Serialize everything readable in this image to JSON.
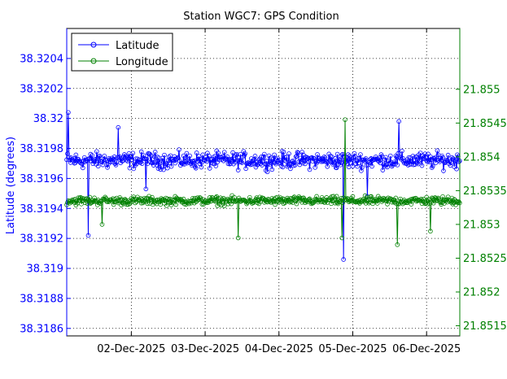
{
  "chart_data": {
    "type": "line",
    "title": "Station WGC7: GPS Condition",
    "xlabel": "",
    "ylabel": "Latitude (degrees)",
    "y2label": "",
    "xlim": [
      1.125,
      6.45
    ],
    "x_tick_values": [
      2,
      3,
      4,
      5,
      6
    ],
    "x_tick_labels": [
      "02-Dec-2025",
      "03-Dec-2025",
      "04-Dec-2025",
      "05-Dec-2025",
      "06-Dec-2025"
    ],
    "ylim": [
      38.31855,
      38.3206
    ],
    "y_ticks": [
      38.3186,
      38.3188,
      38.319,
      38.3192,
      38.3194,
      38.3196,
      38.3198,
      38.32,
      38.3202,
      38.3204
    ],
    "y_tick_labels": [
      "38.3186",
      "38.3188",
      "38.319",
      "38.3192",
      "38.3194",
      "38.3196",
      "38.3198",
      "38.32",
      "38.3202",
      "38.3204"
    ],
    "y2lim": [
      21.85135,
      21.8559
    ],
    "y2_ticks": [
      21.8515,
      21.852,
      21.8525,
      21.853,
      21.8535,
      21.854,
      21.8545,
      21.855
    ],
    "y2_tick_labels": [
      "21.8515",
      "21.852",
      "21.8525",
      "21.853",
      "21.8535",
      "21.854",
      "21.8545",
      "21.855"
    ],
    "grid": true,
    "legend_position": "top-left",
    "series": [
      {
        "name": "Latitude",
        "axis": "left",
        "color": "#0000ff",
        "base": 38.31972,
        "noise": 8e-05,
        "spikes": [
          {
            "x": 1.15,
            "y": 38.32004
          },
          {
            "x": 1.42,
            "y": 38.31922
          },
          {
            "x": 1.82,
            "y": 38.31994
          },
          {
            "x": 2.2,
            "y": 38.31953
          },
          {
            "x": 4.88,
            "y": 38.31906
          },
          {
            "x": 5.62,
            "y": 38.31998
          },
          {
            "x": 5.2,
            "y": 38.31948
          }
        ]
      },
      {
        "name": "Longitude",
        "axis": "right",
        "color": "#008000",
        "base": 21.85335,
        "noise": 9e-05,
        "spikes": [
          {
            "x": 4.9,
            "y": 21.85455
          },
          {
            "x": 3.45,
            "y": 21.8528
          },
          {
            "x": 1.6,
            "y": 21.853
          },
          {
            "x": 5.6,
            "y": 21.8527
          },
          {
            "x": 4.85,
            "y": 21.8528
          },
          {
            "x": 6.05,
            "y": 21.8529
          }
        ]
      }
    ]
  }
}
